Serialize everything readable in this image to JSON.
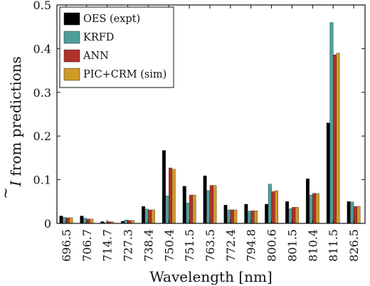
{
  "chart_data": {
    "type": "bar",
    "title": "",
    "xlabel": "Wavelength [nm]",
    "ylabel_symbol": "I",
    "ylabel_tilde": "~",
    "ylabel_text": " from predictions",
    "categories": [
      "696.5",
      "706.7",
      "714.7",
      "727.3",
      "738.4",
      "750.4",
      "751.5",
      "763.5",
      "772.4",
      "794.8",
      "800.6",
      "801.5",
      "810.4",
      "811.5",
      "826.5"
    ],
    "ylim": [
      0,
      0.5
    ],
    "yticks": [
      0,
      0.1,
      0.2,
      0.3,
      0.4,
      0.5
    ],
    "ytick_labels": [
      "0",
      "0.1",
      "0.2",
      "0.3",
      "0.4",
      "0.5"
    ],
    "grid": false,
    "legend_position": "top-left",
    "series": [
      {
        "name": "OES (expt)",
        "color": "#000000",
        "values": [
          0.017,
          0.017,
          0.004,
          0.005,
          0.039,
          0.167,
          0.085,
          0.109,
          0.042,
          0.044,
          0.044,
          0.05,
          0.102,
          0.23,
          0.05
        ]
      },
      {
        "name": "KRFD",
        "color": "#4e9f9b",
        "values": [
          0.014,
          0.012,
          0.002,
          0.008,
          0.033,
          0.063,
          0.047,
          0.075,
          0.031,
          0.028,
          0.09,
          0.034,
          0.065,
          0.46,
          0.049
        ]
      },
      {
        "name": "ANN",
        "color": "#b2302a",
        "values": [
          0.013,
          0.01,
          0.004,
          0.007,
          0.031,
          0.127,
          0.065,
          0.087,
          0.031,
          0.029,
          0.073,
          0.037,
          0.069,
          0.386,
          0.039
        ]
      },
      {
        "name": "PIC+CRM (sim)",
        "color": "#cf9a26",
        "values": [
          0.013,
          0.01,
          0.004,
          0.007,
          0.031,
          0.124,
          0.065,
          0.087,
          0.031,
          0.029,
          0.075,
          0.037,
          0.068,
          0.39,
          0.039
        ]
      }
    ]
  }
}
